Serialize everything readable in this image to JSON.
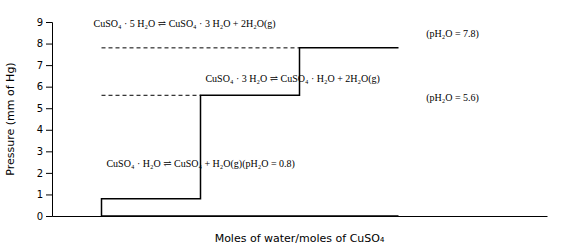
{
  "chart_data": {
    "type": "line",
    "xlabel": "Moles of water/moles of CuSO₄",
    "ylabel": "Pressure (mm of Hg)",
    "xlim": [
      0,
      5
    ],
    "ylim": [
      0,
      9
    ],
    "yticks": [
      0,
      1,
      2,
      3,
      4,
      5,
      6,
      7,
      8,
      9
    ],
    "tick_labels": "y",
    "grid": false,
    "color": "#000000",
    "series": [
      {
        "x": [
          3.5,
          0.5,
          0.5,
          1.5,
          1.5,
          2.5,
          2.5,
          3.5
        ],
        "values": [
          0,
          0,
          0.8,
          0.8,
          5.6,
          5.6,
          7.8,
          7.8
        ],
        "line_style": "solid"
      },
      {
        "x": [
          0.5,
          2.5
        ],
        "values": [
          7.8,
          7.8
        ],
        "line_style": "dashed"
      },
      {
        "x": [
          0.5,
          1.5
        ],
        "values": [
          5.6,
          5.6
        ],
        "line_style": "dashed"
      }
    ],
    "annotations": [
      {
        "text": "CuSO₄ · 5 H₂O ⇌ CuSO₄ · 3 H₂O + 2H₂O(g)",
        "x": 0.42,
        "y": 8.65
      },
      {
        "text": "(pH₂O = 7.8)",
        "x": 3.78,
        "y": 8.15
      },
      {
        "text": "CuSO₄ · 3 H₂O ⇌ CuSO₄ · H₂O + 2H₂O(g)",
        "x": 1.55,
        "y": 6.1
      },
      {
        "text": "(pH₂O = 5.6)",
        "x": 3.78,
        "y": 5.2
      },
      {
        "text": "CuSO₄ · H₂O ⇌ CuSO₄ + H₂O(g)(pH₂O = 0.8)",
        "x": 0.55,
        "y": 2.15
      }
    ]
  }
}
